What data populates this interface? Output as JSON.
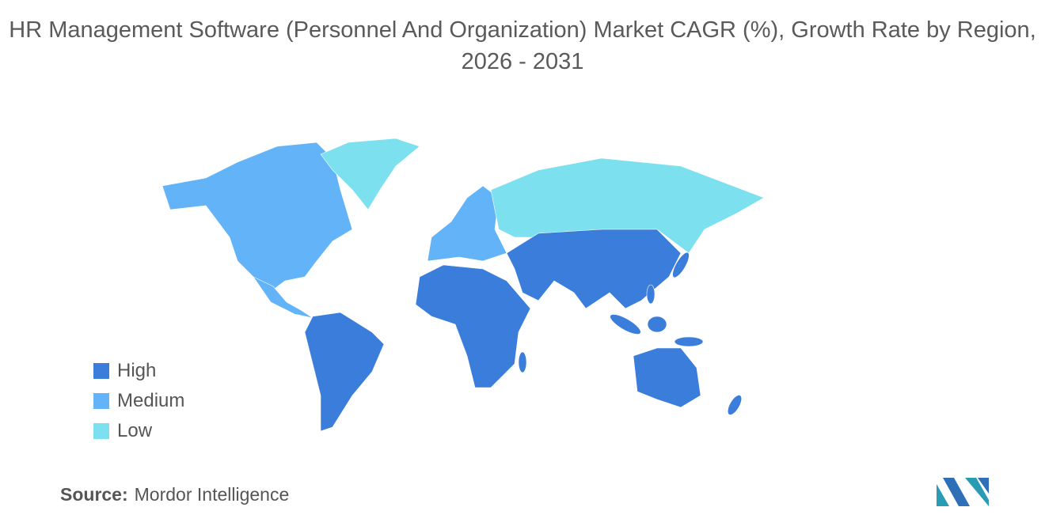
{
  "title": "HR Management Software (Personnel And Organization) Market CAGR (%), Growth Rate by Region, 2026 - 2031",
  "legend": [
    {
      "name": "High",
      "color": "#3a7ddb"
    },
    {
      "name": "Medium",
      "color": "#62b3f7"
    },
    {
      "name": "Low",
      "color": "#7de0ee"
    }
  ],
  "source_label": "Source:",
  "source": "Mordor Intelligence"
}
